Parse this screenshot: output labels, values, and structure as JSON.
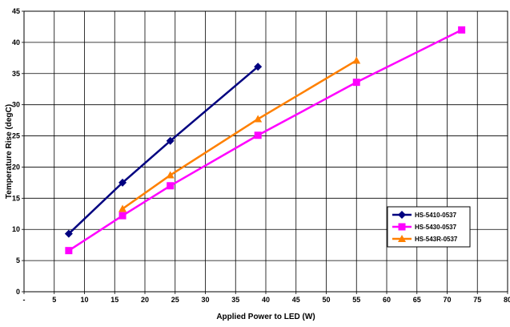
{
  "chart_data": {
    "type": "line",
    "title": "",
    "xlabel": "Applied Power to LED (W)",
    "ylabel": "Temperature Rise (degC)",
    "xlim": [
      0,
      80
    ],
    "ylim": [
      0,
      45
    ],
    "x_ticks": [
      {
        "value": 0,
        "label": "-"
      },
      {
        "value": 5,
        "label": "5"
      },
      {
        "value": 10,
        "label": "10"
      },
      {
        "value": 15,
        "label": "15"
      },
      {
        "value": 20,
        "label": "20"
      },
      {
        "value": 25,
        "label": "25"
      },
      {
        "value": 30,
        "label": "30"
      },
      {
        "value": 35,
        "label": "35"
      },
      {
        "value": 40,
        "label": "40"
      },
      {
        "value": 45,
        "label": "45"
      },
      {
        "value": 50,
        "label": "50"
      },
      {
        "value": 55,
        "label": "55"
      },
      {
        "value": 60,
        "label": "60"
      },
      {
        "value": 65,
        "label": "65"
      },
      {
        "value": 70,
        "label": "70"
      },
      {
        "value": 75,
        "label": "75"
      },
      {
        "value": 80,
        "label": "80"
      }
    ],
    "y_ticks": [
      {
        "value": 0,
        "label": "0"
      },
      {
        "value": 5,
        "label": "5"
      },
      {
        "value": 10,
        "label": "10"
      },
      {
        "value": 15,
        "label": "15"
      },
      {
        "value": 20,
        "label": "20"
      },
      {
        "value": 25,
        "label": "25"
      },
      {
        "value": 30,
        "label": "30"
      },
      {
        "value": 35,
        "label": "35"
      },
      {
        "value": 40,
        "label": "40"
      },
      {
        "value": 45,
        "label": "45"
      }
    ],
    "grid": true,
    "legend_position": "right",
    "series": [
      {
        "name": "HS-5410-0537",
        "color": "#000080",
        "marker": "diamond",
        "points": [
          {
            "x": 7.4,
            "y": 9.3
          },
          {
            "x": 16.3,
            "y": 17.5
          },
          {
            "x": 24.2,
            "y": 24.2
          },
          {
            "x": 38.7,
            "y": 36.1
          }
        ]
      },
      {
        "name": "HS-5430-0537",
        "color": "#ff00ff",
        "marker": "square",
        "points": [
          {
            "x": 7.4,
            "y": 6.6
          },
          {
            "x": 16.3,
            "y": 12.2
          },
          {
            "x": 24.2,
            "y": 17.0
          },
          {
            "x": 38.7,
            "y": 25.1
          },
          {
            "x": 55.0,
            "y": 33.6
          },
          {
            "x": 72.4,
            "y": 42.0
          }
        ]
      },
      {
        "name": "HS-543R-0537",
        "color": "#ff8000",
        "marker": "triangle",
        "points": [
          {
            "x": 16.3,
            "y": 13.3
          },
          {
            "x": 24.2,
            "y": 18.7
          },
          {
            "x": 38.7,
            "y": 27.7
          },
          {
            "x": 55.0,
            "y": 37.1
          }
        ]
      }
    ]
  }
}
